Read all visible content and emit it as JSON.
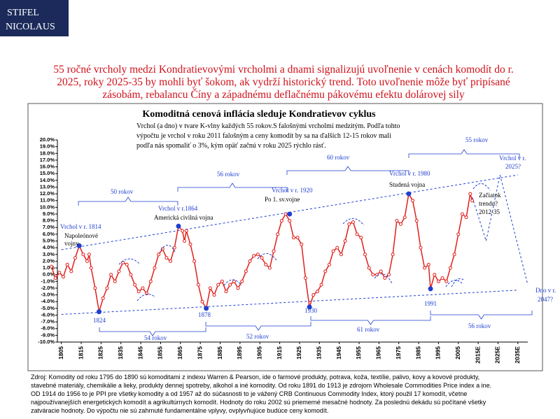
{
  "logo": [
    "STIFEL",
    "NICOLAUS"
  ],
  "headline": [
    "55 ročné vrcholy medzi Kondratievovými vrcholmi a dnami signalizujú uvoľnenie v cenách komodít do r.",
    "2025, roky 2025-35 by mohli byť šokom, ak vydrží historický trend. Toto uvoľnenie môže byť pripísané",
    "zásobám, rebalancu Číny a západnému deflačnému pákovému efektu dolárovej sily"
  ],
  "chart_data": {
    "type": "line",
    "title": "Komoditná cenová inflácia sleduje Kondratievov cyklus",
    "subtitle": [
      "Vrchol (a dno) v tvare K-vlny každých 55 rokov.S falošnými vrcholmi medzitým. Podľa tohto",
      "výpočtu je vrchol v roku 2011 falošným a ceny komodít by sa na ďalších 12-15 rokov mali",
      "podľa nás spomaliť o 3%, kým opäť začnú v roku 2025 rýchlo rásť."
    ],
    "xlim": [
      1803,
      2040
    ],
    "xticks": [
      1805,
      1815,
      1825,
      1835,
      1845,
      1855,
      1865,
      1875,
      1885,
      1895,
      1905,
      1915,
      1925,
      1935,
      1945,
      1955,
      1965,
      1975,
      1985,
      1995,
      2005,
      {
        "value": 2015,
        "label": "2015E"
      },
      {
        "value": 2025,
        "label": "2025E"
      },
      {
        "value": 2035,
        "label": "2035E"
      }
    ],
    "ylim": [
      -10,
      20
    ],
    "yticks": [
      {
        "value": -10,
        "label": "-10.0%"
      },
      {
        "value": -9,
        "label": "-9.0%"
      },
      {
        "value": -8,
        "label": "-8.0%"
      },
      {
        "value": -7,
        "label": "-7.0%"
      },
      {
        "value": -6,
        "label": "-6.0%"
      },
      {
        "value": -5,
        "label": "-5.0%"
      },
      {
        "value": -4,
        "label": "-4.0%"
      },
      {
        "value": -3,
        "label": "-3.0%"
      },
      {
        "value": -2,
        "label": "-2.0%"
      },
      {
        "value": -1,
        "label": "-1.0%"
      },
      {
        "value": 0,
        "label": "0.0%"
      },
      {
        "value": 1,
        "label": "1.0%"
      },
      {
        "value": 2,
        "label": "2.0%"
      },
      {
        "value": 3,
        "label": "3.0%"
      },
      {
        "value": 4,
        "label": "4.0%"
      },
      {
        "value": 5,
        "label": "5.0%"
      },
      {
        "value": 6,
        "label": "6.0%"
      },
      {
        "value": 7,
        "label": "7.0%"
      },
      {
        "value": 8,
        "label": "8.0%"
      },
      {
        "value": 9,
        "label": "9.0%"
      },
      {
        "value": 10,
        "label": "10.0%"
      },
      {
        "value": 11,
        "label": "11.0%"
      },
      {
        "value": 12,
        "label": "12.0%"
      },
      {
        "value": 13,
        "label": "13.0%"
      },
      {
        "value": 14,
        "label": "14.0%"
      },
      {
        "value": 15,
        "label": "15.0%"
      },
      {
        "value": 16,
        "label": "16.0%"
      },
      {
        "value": 17,
        "label": "17.0%"
      },
      {
        "value": 18,
        "label": "18.0%"
      },
      {
        "value": 19,
        "label": "19.0%"
      },
      {
        "value": 20,
        "label": "20.0%"
      }
    ],
    "series": [
      {
        "style": "line",
        "color": "#e0201c",
        "x": [
          1800,
          1802,
          1804,
          1806,
          1808,
          1810,
          1812,
          1814,
          1816,
          1818,
          1819,
          1820,
          1822,
          1824,
          1826,
          1828,
          1830,
          1832,
          1834,
          1836,
          1838,
          1840,
          1842,
          1844,
          1846,
          1848,
          1850,
          1852,
          1854,
          1856,
          1858,
          1860,
          1862,
          1864,
          1866,
          1867,
          1868,
          1870,
          1872,
          1874,
          1876,
          1878,
          1880,
          1882,
          1884,
          1886,
          1888,
          1890,
          1892,
          1894,
          1896,
          1898,
          1900,
          1902,
          1904,
          1906,
          1908,
          1910,
          1912,
          1914,
          1916,
          1918,
          1920,
          1922,
          1924,
          1926,
          1928,
          1930,
          1932,
          1934,
          1936,
          1938,
          1940,
          1942,
          1944,
          1946,
          1948,
          1950,
          1952,
          1954,
          1956,
          1958,
          1960,
          1962,
          1964,
          1966,
          1968,
          1970,
          1972,
          1974,
          1976,
          1978,
          1980,
          1982,
          1984,
          1986,
          1988,
          1990,
          1991,
          1993,
          1995,
          1997,
          1999,
          2001,
          2003,
          2005,
          2007,
          2009,
          2011,
          2012
        ],
        "values": [
          1.2,
          -0.5,
          0.3,
          -0.3,
          1.5,
          0.5,
          2.5,
          4.3,
          3.0,
          2.0,
          3.0,
          1.0,
          -2.0,
          -5.5,
          -3.5,
          -2.0,
          0.0,
          -1.0,
          0.5,
          1.8,
          1.5,
          0.0,
          -1.5,
          -2.5,
          -2.0,
          -2.8,
          -1.0,
          1.0,
          3.0,
          3.8,
          2.5,
          2.0,
          4.0,
          7.2,
          6.5,
          5.0,
          6.5,
          4.5,
          2.0,
          -1.5,
          -4.0,
          -5.0,
          -2.0,
          -3.0,
          -1.5,
          -1.0,
          -2.5,
          -1.5,
          -1.0,
          -2.0,
          -1.0,
          0.5,
          2.0,
          2.8,
          3.0,
          2.5,
          1.5,
          1.0,
          3.5,
          6.0,
          8.0,
          9.0,
          8.0,
          5.5,
          5.5,
          4.5,
          -0.5,
          -4.8,
          -3.0,
          -2.5,
          -1.5,
          0.5,
          1.5,
          3.5,
          4.0,
          3.0,
          5.0,
          7.5,
          7.8,
          6.0,
          5.5,
          3.0,
          1.0,
          0.0,
          0.0,
          0.5,
          -0.5,
          0.0,
          3.0,
          8.0,
          7.5,
          8.5,
          12.0,
          11.0,
          8.0,
          4.0,
          1.0,
          1.5,
          -2.1,
          0.0,
          -1.0,
          -0.5,
          -1.0,
          1.0,
          3.0,
          6.0,
          9.0,
          8.5,
          12.0,
          11.0
        ]
      },
      {
        "style": "points",
        "color": "#1f3fd0",
        "x": [
          1814,
          1824,
          1864,
          1878,
          1920,
          1930,
          1980,
          1991
        ],
        "values": [
          4.3,
          -5.5,
          7.2,
          -5.0,
          9.0,
          -4.8,
          12.0,
          -2.1
        ]
      }
    ],
    "trend_lines": [
      {
        "color": "#1f3fd0",
        "x": [
          1805,
          2035
        ],
        "values": [
          3.7,
          14.8
        ]
      },
      {
        "color": "#1f3fd0",
        "x": [
          1805,
          2035
        ],
        "values": [
          -5.9,
          -2.3
        ]
      },
      {
        "color": "#1f3fd0",
        "x": [
          2012,
          2019,
          2026,
          2040
        ],
        "values": [
          11.5,
          5.0,
          14.8,
          -1.5
        ]
      }
    ],
    "annotations": [
      "Vrchol v r. 1814",
      "Napoleónové",
      "vojny",
      "1824",
      "50 rokov",
      "Vrchol v r.1864",
      "Americká civilná vojna",
      "54 rokov",
      "56 rokov",
      "1878",
      "52 rokov",
      "Vrchol v r. 1920",
      "Po 1. sv.vojne",
      "60 rokov",
      "1930",
      "61 rokov",
      "Vrchol v r. 1980",
      "Studená vojna",
      "55 rokov",
      "1991",
      "56 rokov",
      "Vrchol v r.",
      "2025?",
      "Začiatok",
      "trendu?",
      "2012-35",
      "Dno v r.",
      "2047?"
    ]
  },
  "source": [
    "Zdroj: Komodity od roku 1795 do 1890 sú komoditami z indexu Warren & Pearson, ide o farmové produkty, potrava, koža, textílie, palivo, kovy a kovové produkty,",
    "stavebné materiály, chemikálie a lieky, produkty dennej spotreby, alkohol a iné komodity. Od roku 1891 do 1913 je zdrojom Wholesale Commodities Price index a ine.",
    "OD 1914 do 1956 to je PPI pre všetky komodity a od 1957 až do súčasnosti to je vážený CRB Continuous Commodity Index, ktorý použil 17 komodít, včetne",
    "najpoužívanejších energetických komodít a agrikultúrnych komodít. Hodnoty do roku 2002 sú priemerné mesačné hodnoty. Za poslednú dekádu sú počítané všetky",
    "zatváracie hodnoty. Do výpočtu nie sú zahrnuté fundamentálne vplyvy, ovplyvňujúce budúce ceny komodít."
  ]
}
